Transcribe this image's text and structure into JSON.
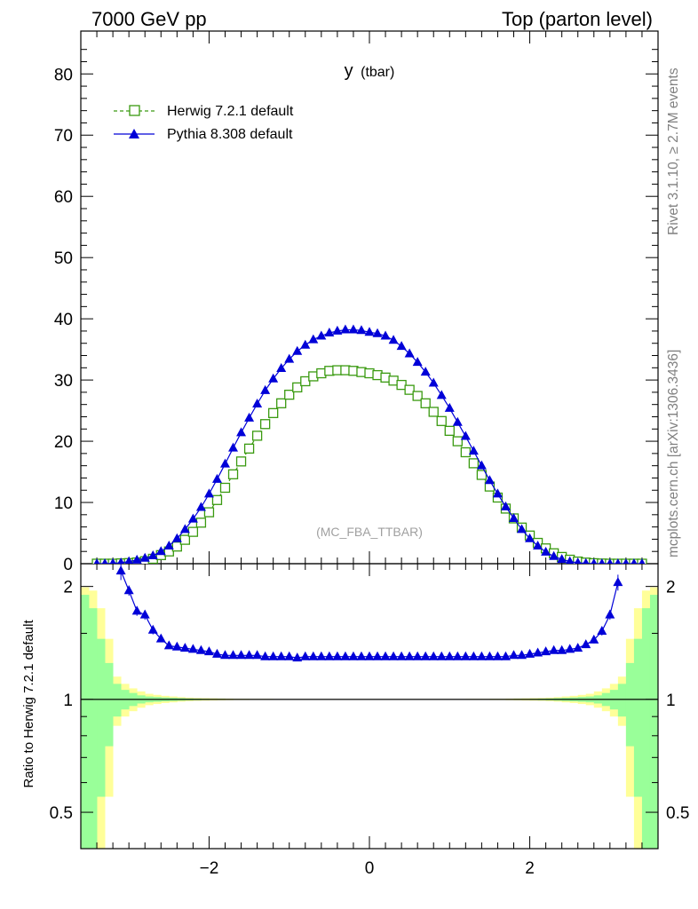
{
  "header": {
    "left": "7000 GeV pp",
    "right": "Top (parton level)"
  },
  "side_labels": {
    "rivet": "Rivet 3.1.10, ≥ 2.7M events",
    "mcplots": "mcplots.cern.ch [arXiv:1306.3436]"
  },
  "chart_data": [
    {
      "panel": "main",
      "type": "line",
      "title_main": "y",
      "title_sub": "(tbar)",
      "watermark": "(MC_FBA_TTBAR)",
      "xlim": [
        -3.6,
        3.6
      ],
      "ylim": [
        0,
        87
      ],
      "yticks": [
        "0",
        "10",
        "20",
        "30",
        "40",
        "50",
        "60",
        "70",
        "80"
      ],
      "legend_position": "top-left",
      "series": [
        {
          "name": "Herwig 7.2.1 default",
          "color": "#3a9a10",
          "marker": "open-square",
          "linestyle": "dashed",
          "x": [
            -3.4,
            -3.3,
            -3.2,
            -3.1,
            -3.0,
            -2.9,
            -2.8,
            -2.7,
            -2.6,
            -2.5,
            -2.4,
            -2.3,
            -2.2,
            -2.1,
            -2.0,
            -1.9,
            -1.8,
            -1.7,
            -1.6,
            -1.5,
            -1.4,
            -1.3,
            -1.2,
            -1.1,
            -1.0,
            -0.9,
            -0.8,
            -0.7,
            -0.6,
            -0.5,
            -0.4,
            -0.3,
            -0.2,
            -0.1,
            0.0,
            0.1,
            0.2,
            0.3,
            0.4,
            0.5,
            0.6,
            0.7,
            0.8,
            0.9,
            1.0,
            1.1,
            1.2,
            1.3,
            1.4,
            1.5,
            1.6,
            1.7,
            1.8,
            1.9,
            2.0,
            2.1,
            2.2,
            2.3,
            2.4,
            2.5,
            2.6,
            2.7,
            2.8,
            2.9,
            3.0,
            3.1,
            3.2,
            3.3,
            3.4
          ],
          "y": [
            0.0,
            0.0,
            0.0,
            0.05,
            0.1,
            0.2,
            0.4,
            0.8,
            1.4,
            2.0,
            2.8,
            3.9,
            5.2,
            6.7,
            8.4,
            10.4,
            12.4,
            14.6,
            16.7,
            18.8,
            20.9,
            22.8,
            24.6,
            26.2,
            27.6,
            28.8,
            29.8,
            30.6,
            31.1,
            31.5,
            31.6,
            31.6,
            31.5,
            31.3,
            31.1,
            30.8,
            30.4,
            29.9,
            29.2,
            28.4,
            27.4,
            26.2,
            24.8,
            23.3,
            21.7,
            20.0,
            18.2,
            16.4,
            14.5,
            12.6,
            10.8,
            9.0,
            7.4,
            5.9,
            4.6,
            3.4,
            2.5,
            1.7,
            1.1,
            0.65,
            0.35,
            0.18,
            0.08,
            0.03,
            0.0,
            0.0,
            0.0,
            0.0,
            0.0
          ]
        },
        {
          "name": "Pythia 8.308 default",
          "color": "#0000d8",
          "marker": "filled-triangle",
          "linestyle": "solid",
          "x": [
            -3.4,
            -3.3,
            -3.2,
            -3.1,
            -3.0,
            -2.9,
            -2.8,
            -2.7,
            -2.6,
            -2.5,
            -2.4,
            -2.3,
            -2.2,
            -2.1,
            -2.0,
            -1.9,
            -1.8,
            -1.7,
            -1.6,
            -1.5,
            -1.4,
            -1.3,
            -1.2,
            -1.1,
            -1.0,
            -0.9,
            -0.8,
            -0.7,
            -0.6,
            -0.5,
            -0.4,
            -0.3,
            -0.2,
            -0.1,
            0.0,
            0.1,
            0.2,
            0.3,
            0.4,
            0.5,
            0.6,
            0.7,
            0.8,
            0.9,
            1.0,
            1.1,
            1.2,
            1.3,
            1.4,
            1.5,
            1.6,
            1.7,
            1.8,
            1.9,
            2.0,
            2.1,
            2.2,
            2.3,
            2.4,
            2.5,
            2.6,
            2.7,
            2.8,
            2.9,
            3.0,
            3.1,
            3.2,
            3.3,
            3.4
          ],
          "y": [
            0.0,
            0.0,
            0.05,
            0.15,
            0.35,
            0.6,
            0.9,
            1.3,
            2.0,
            2.9,
            4.1,
            5.6,
            7.3,
            9.2,
            11.4,
            13.8,
            16.3,
            18.9,
            21.4,
            23.8,
            26.1,
            28.3,
            30.2,
            31.9,
            33.4,
            34.7,
            35.7,
            36.6,
            37.2,
            37.7,
            38.0,
            38.2,
            38.2,
            38.1,
            37.8,
            37.6,
            37.2,
            36.5,
            35.5,
            34.3,
            32.9,
            31.3,
            29.5,
            27.5,
            25.4,
            23.1,
            20.8,
            18.4,
            16.0,
            13.6,
            11.4,
            9.3,
            7.4,
            5.6,
            4.1,
            2.9,
            1.9,
            1.2,
            0.7,
            0.35,
            0.15,
            0.05,
            0.0,
            0.0,
            0.0,
            0.0,
            0.0,
            0.0,
            0.0
          ]
        }
      ]
    },
    {
      "panel": "ratio",
      "type": "line",
      "ylabel": "Ratio to Herwig 7.2.1 default",
      "yscale": "log",
      "ylim": [
        0.4,
        2.3
      ],
      "yticks": [
        "0.5",
        "1",
        "2"
      ],
      "xlim": [
        -3.6,
        3.6
      ],
      "xticks": [
        "−2",
        "0",
        "2"
      ],
      "reference_line": 1,
      "bands": {
        "bins_abs_x": [
          0.0,
          0.1,
          0.2,
          0.3,
          0.4,
          0.5,
          0.6,
          0.7,
          0.8,
          0.9,
          1.0,
          1.1,
          1.2,
          1.3,
          1.4,
          1.5,
          1.6,
          1.7,
          1.8,
          1.9,
          2.0,
          2.1,
          2.2,
          2.3,
          2.4,
          2.5,
          2.6,
          2.7,
          2.8,
          2.9,
          3.0,
          3.1,
          3.2,
          3.3,
          3.4,
          3.5
        ],
        "green_halfwidth": [
          0.001,
          0.001,
          0.001,
          0.001,
          0.001,
          0.001,
          0.001,
          0.001,
          0.001,
          0.001,
          0.001,
          0.001,
          0.001,
          0.001,
          0.001,
          0.002,
          0.002,
          0.002,
          0.003,
          0.003,
          0.004,
          0.005,
          0.006,
          0.008,
          0.01,
          0.012,
          0.015,
          0.018,
          0.025,
          0.04,
          0.06,
          0.1,
          0.25,
          0.45,
          0.75,
          0.9
        ],
        "yellow_halfwidth": [
          0.002,
          0.002,
          0.002,
          0.002,
          0.002,
          0.002,
          0.002,
          0.002,
          0.002,
          0.002,
          0.002,
          0.002,
          0.003,
          0.003,
          0.003,
          0.004,
          0.004,
          0.005,
          0.006,
          0.007,
          0.008,
          0.009,
          0.011,
          0.014,
          0.018,
          0.022,
          0.028,
          0.035,
          0.05,
          0.07,
          0.1,
          0.15,
          0.45,
          0.75,
          0.95,
          0.99
        ]
      },
      "series": [
        {
          "name": "Pythia 8.308 default",
          "color": "#0000d8",
          "x": [
            -3.1,
            -3.0,
            -2.9,
            -2.8,
            -2.7,
            -2.6,
            -2.5,
            -2.4,
            -2.3,
            -2.2,
            -2.1,
            -2.0,
            -1.9,
            -1.8,
            -1.7,
            -1.6,
            -1.5,
            -1.4,
            -1.3,
            -1.2,
            -1.1,
            -1.0,
            -0.9,
            -0.8,
            -0.7,
            -0.6,
            -0.5,
            -0.4,
            -0.3,
            -0.2,
            -0.1,
            0.0,
            0.1,
            0.2,
            0.3,
            0.4,
            0.5,
            0.6,
            0.7,
            0.8,
            0.9,
            1.0,
            1.1,
            1.2,
            1.3,
            1.4,
            1.5,
            1.6,
            1.7,
            1.8,
            1.9,
            2.0,
            2.1,
            2.2,
            2.3,
            2.4,
            2.5,
            2.6,
            2.7,
            2.8,
            2.9,
            3.0,
            3.1
          ],
          "y": [
            2.2,
            1.95,
            1.72,
            1.68,
            1.53,
            1.45,
            1.39,
            1.38,
            1.37,
            1.36,
            1.35,
            1.34,
            1.32,
            1.31,
            1.31,
            1.31,
            1.31,
            1.31,
            1.3,
            1.3,
            1.3,
            1.3,
            1.29,
            1.3,
            1.3,
            1.3,
            1.3,
            1.3,
            1.3,
            1.3,
            1.3,
            1.3,
            1.3,
            1.3,
            1.3,
            1.3,
            1.3,
            1.3,
            1.3,
            1.3,
            1.3,
            1.3,
            1.3,
            1.3,
            1.3,
            1.3,
            1.3,
            1.3,
            1.3,
            1.31,
            1.31,
            1.32,
            1.33,
            1.34,
            1.35,
            1.35,
            1.36,
            1.37,
            1.4,
            1.44,
            1.52,
            1.68,
            2.05
          ],
          "yerr": [
            0.12,
            0.06,
            0.05,
            0.05,
            0.04,
            0.03,
            0.02,
            0.02,
            0.02,
            0.01,
            0.01,
            0.01,
            0.01,
            0.01,
            0.01,
            0.01,
            0.01,
            0.01,
            0.01,
            0.01,
            0.01,
            0.01,
            0.01,
            0.01,
            0.01,
            0.01,
            0.01,
            0.01,
            0.01,
            0.01,
            0.01,
            0.01,
            0.01,
            0.01,
            0.01,
            0.01,
            0.01,
            0.01,
            0.01,
            0.01,
            0.01,
            0.01,
            0.01,
            0.01,
            0.01,
            0.01,
            0.01,
            0.01,
            0.01,
            0.01,
            0.01,
            0.01,
            0.01,
            0.01,
            0.01,
            0.02,
            0.02,
            0.02,
            0.03,
            0.03,
            0.04,
            0.05,
            0.1
          ]
        }
      ]
    }
  ]
}
